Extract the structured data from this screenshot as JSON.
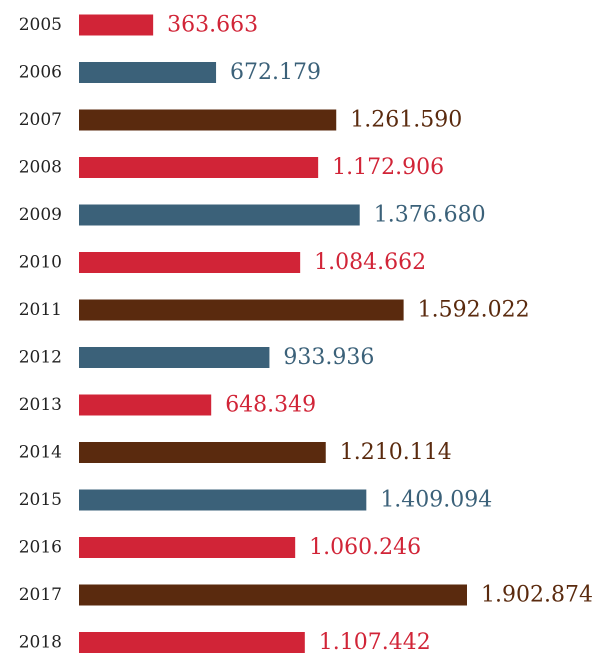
{
  "colors": {
    "red": "#d12437",
    "blue": "#3b6179",
    "brown": "#5a2a0e"
  },
  "chart_data": {
    "type": "bar",
    "orientation": "horizontal",
    "title": "",
    "xlabel": "",
    "ylabel": "",
    "grid": false,
    "categories": [
      "2005",
      "2006",
      "2007",
      "2008",
      "2009",
      "2010",
      "2011",
      "2012",
      "2013",
      "2014",
      "2015",
      "2016",
      "2017",
      "2018"
    ],
    "values": [
      363663,
      672179,
      1261590,
      1172906,
      1376680,
      1084662,
      1592022,
      933936,
      648349,
      1210114,
      1409094,
      1060246,
      1902874,
      1107442
    ],
    "value_labels": [
      "363.663",
      "672.179",
      "1.261.590",
      "1.172.906",
      "1.376.680",
      "1.084.662",
      "1.592.022",
      "933.936",
      "648.349",
      "1.210.114",
      "1.409.094",
      "1.060.246",
      "1.902.874",
      "1.107.442"
    ],
    "bar_colors": [
      "red",
      "blue",
      "brown",
      "red",
      "blue",
      "red",
      "brown",
      "blue",
      "red",
      "brown",
      "blue",
      "red",
      "brown",
      "red"
    ],
    "xlim": [
      0,
      1902874
    ]
  }
}
